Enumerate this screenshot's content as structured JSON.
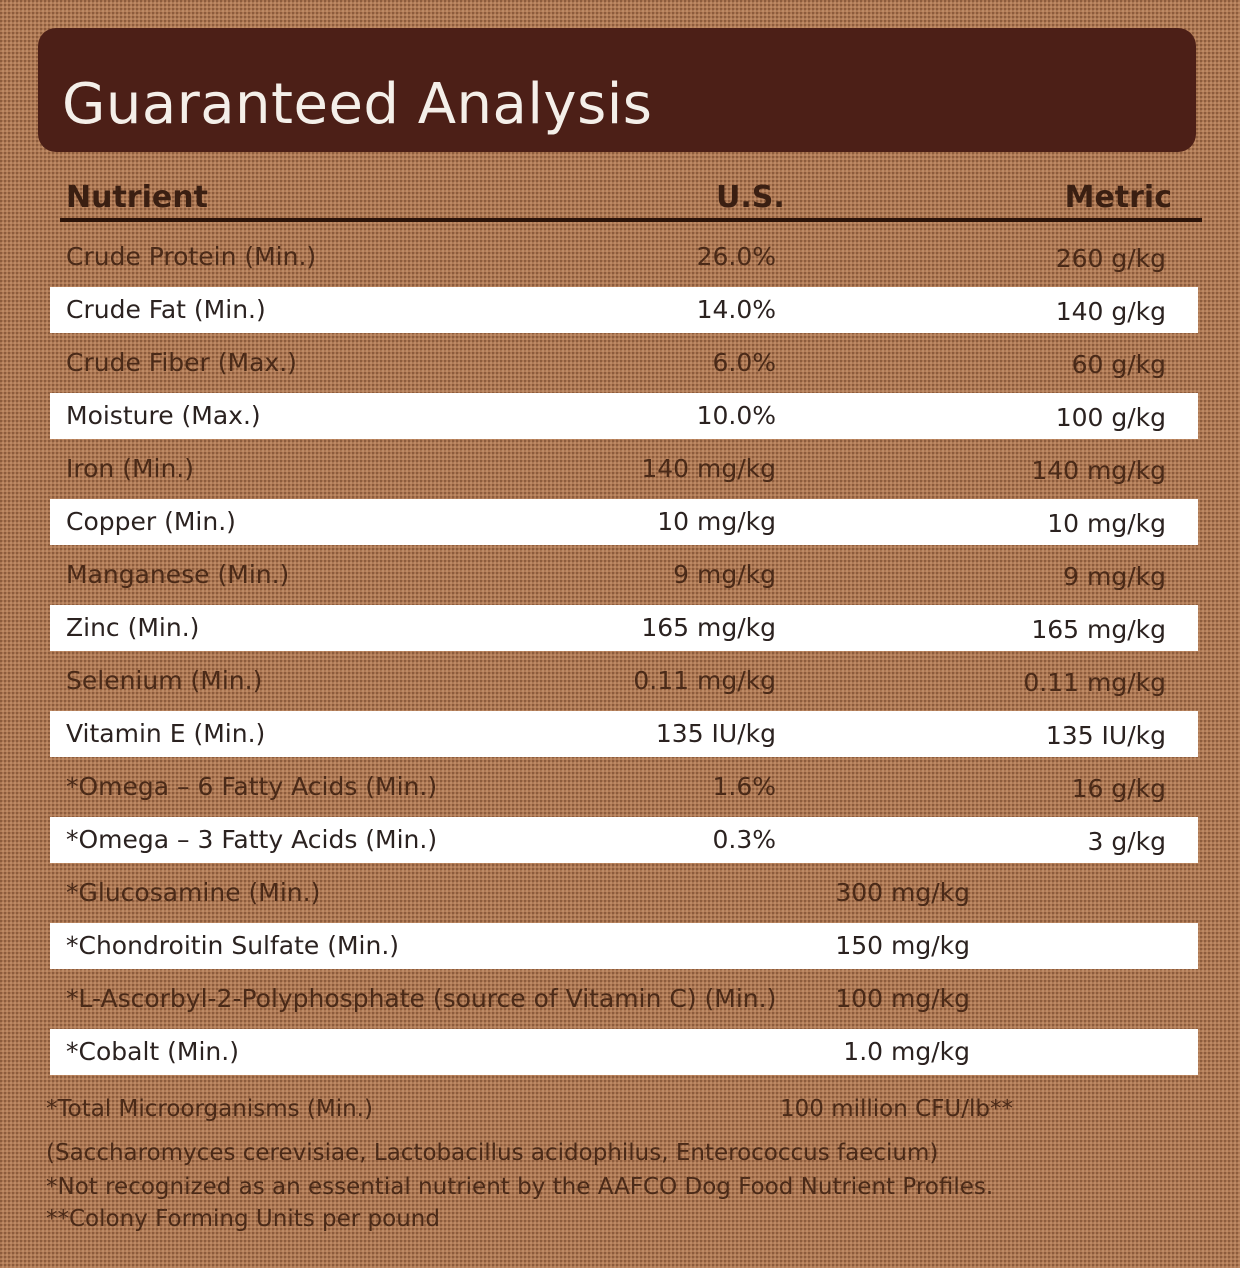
{
  "header": {
    "title": "Guaranteed Analysis"
  },
  "columns": {
    "nutrient": "Nutrient",
    "us": "U.S.",
    "metric": "Metric"
  },
  "rows": [
    {
      "name": "Crude Protein (Min.)",
      "us": "26.0%",
      "metric": "260 g/kg"
    },
    {
      "name": "Crude Fat (Min.)",
      "us": "14.0%",
      "metric": "140 g/kg"
    },
    {
      "name": "Crude Fiber (Max.)",
      "us": "6.0%",
      "metric": "60 g/kg"
    },
    {
      "name": "Moisture (Max.)",
      "us": "10.0%",
      "metric": "100 g/kg"
    },
    {
      "name": "Iron (Min.)",
      "us": "140 mg/kg",
      "metric": "140 mg/kg"
    },
    {
      "name": "Copper (Min.)",
      "us": "10 mg/kg",
      "metric": "10 mg/kg"
    },
    {
      "name": "Manganese (Min.)",
      "us": "9 mg/kg",
      "metric": "9 mg/kg"
    },
    {
      "name": "Zinc (Min.)",
      "us": "165 mg/kg",
      "metric": "165 mg/kg"
    },
    {
      "name": "Selenium (Min.)",
      "us": "0.11 mg/kg",
      "metric": "0.11 mg/kg"
    },
    {
      "name": "Vitamin E (Min.)",
      "us": "135 IU/kg",
      "metric": "135 IU/kg"
    },
    {
      "name": "*Omega – 6 Fatty Acids (Min.)",
      "us": "1.6%",
      "metric": "16 g/kg"
    },
    {
      "name": "*Omega – 3 Fatty Acids (Min.)",
      "us": "0.3%",
      "metric": "3 g/kg"
    },
    {
      "name": "*Glucosamine (Min.)",
      "value": "300 mg/kg"
    },
    {
      "name": "*Chondroitin Sulfate (Min.)",
      "value": "150 mg/kg"
    },
    {
      "name": "*L-Ascorbyl-2-Polyphosphate (source of Vitamin C) (Min.)",
      "value": "100 mg/kg"
    },
    {
      "name": "*Cobalt (Min.)",
      "value": "1.0 mg/kg"
    }
  ],
  "footer": {
    "microorganisms_label": "*Total Microorganisms (Min.)",
    "microorganisms_value": "100 million CFU/lb**",
    "species": "(Saccharomyces cerevisiae, Lactobacillus acidophilus, Enterococcus faecium)",
    "note1": "*Not recognized as an essential nutrient by the AAFCO Dog Food Nutrient Profiles.",
    "note2": "**Colony Forming Units per pound"
  }
}
